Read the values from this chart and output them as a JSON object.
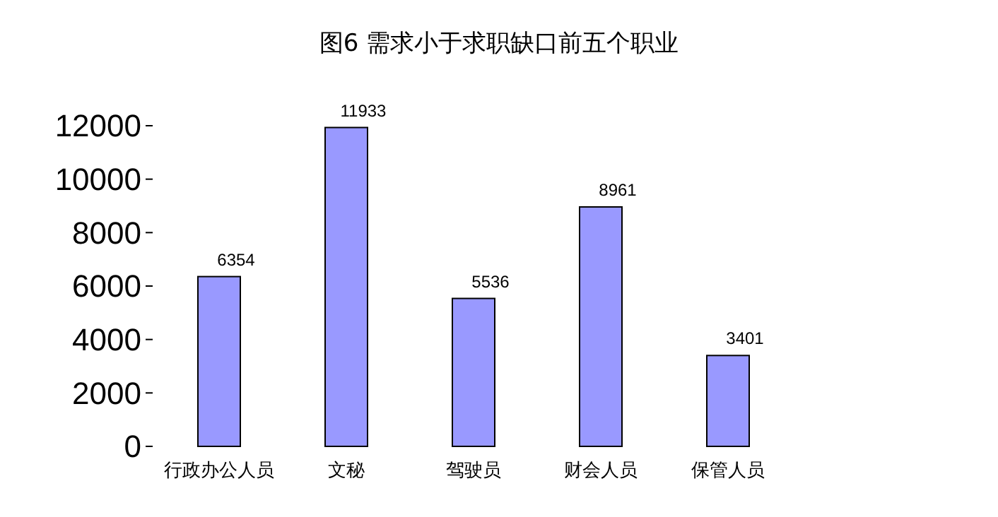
{
  "chart_data": {
    "type": "bar",
    "title": "图6  需求小于求职缺口前五个职业",
    "categories": [
      "行政办公人员",
      "文秘",
      "驾驶员",
      "财会人员",
      "保管人员"
    ],
    "values": [
      6354,
      11933,
      5536,
      8961,
      3401
    ],
    "color": "#9999ff",
    "ylim": [
      0,
      12000
    ],
    "yticks": [
      0,
      2000,
      4000,
      6000,
      8000,
      10000,
      12000
    ],
    "grid": false,
    "data_labels": true
  }
}
